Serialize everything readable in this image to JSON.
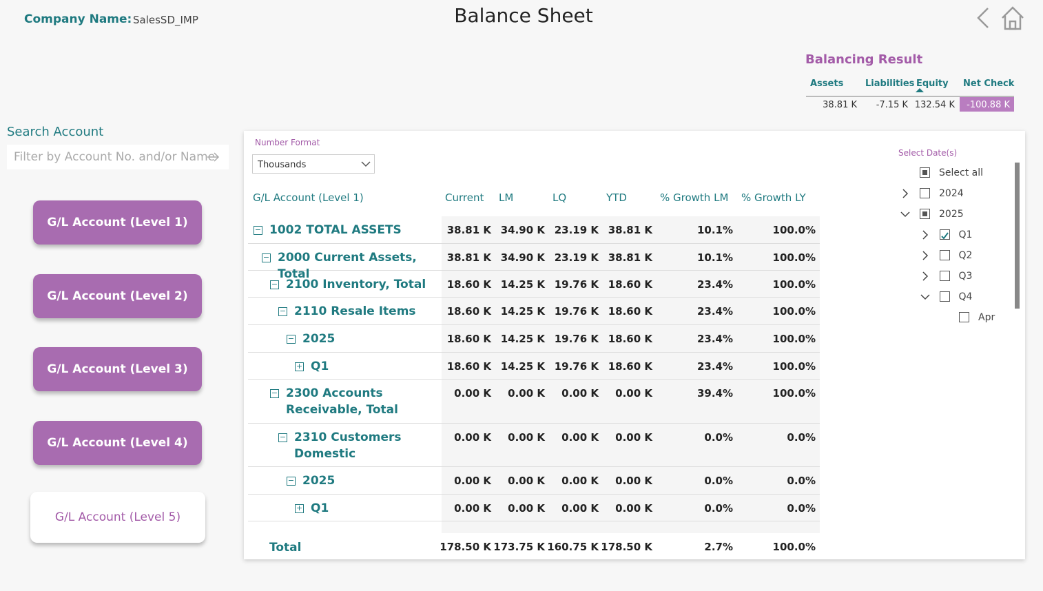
{
  "header": {
    "company_label": "Company Name:",
    "company": "SalesSD_IMP",
    "title": "Balance Sheet"
  },
  "balancing": {
    "title": "Balancing Result",
    "columns": [
      "Assets",
      "Liabilities",
      "Equity",
      "Net Check"
    ],
    "values": [
      "38.81 K",
      "-7.15 K",
      "132.54 K",
      "-100.88 K"
    ]
  },
  "search": {
    "label": "Search Account",
    "placeholder": "Filter by Account No. and/or Name"
  },
  "level_buttons": [
    "G/L Account (Level 1)",
    "G/L Account (Level 2)",
    "G/L Account (Level 3)",
    "G/L Account (Level 4)",
    "G/L Account (Level 5)"
  ],
  "number_format": {
    "label": "Number Format",
    "value": "Thousands"
  },
  "table": {
    "columns": [
      "G/L Account (Level 1)",
      "Current",
      "LM",
      "LQ",
      "YTD",
      "% Growth LM",
      "% Growth LY"
    ],
    "rows": [
      [
        "1002 TOTAL ASSETS",
        "38.81 K",
        "34.90 K",
        "23.19 K",
        "38.81 K",
        "10.1%",
        "100.0%"
      ],
      [
        "2000 Current Assets, Total",
        "38.81 K",
        "34.90 K",
        "23.19 K",
        "38.81 K",
        "10.1%",
        "100.0%"
      ],
      [
        "2100 Inventory, Total",
        "18.60 K",
        "14.25 K",
        "19.76 K",
        "18.60 K",
        "23.4%",
        "100.0%"
      ],
      [
        "2110 Resale Items",
        "18.60 K",
        "14.25 K",
        "19.76 K",
        "18.60 K",
        "23.4%",
        "100.0%"
      ],
      [
        "2025",
        "18.60 K",
        "14.25 K",
        "19.76 K",
        "18.60 K",
        "23.4%",
        "100.0%"
      ],
      [
        "Q1",
        "18.60 K",
        "14.25 K",
        "19.76 K",
        "18.60 K",
        "23.4%",
        "100.0%"
      ],
      [
        "2300 Accounts Receivable, Total",
        "0.00 K",
        "0.00 K",
        "0.00 K",
        "0.00 K",
        "39.4%",
        "100.0%"
      ],
      [
        "2310 Customers Domestic",
        "0.00 K",
        "0.00 K",
        "0.00 K",
        "0.00 K",
        "0.0%",
        "0.0%"
      ],
      [
        "2025",
        "0.00 K",
        "0.00 K",
        "0.00 K",
        "0.00 K",
        "0.0%",
        "0.0%"
      ],
      [
        "Q1",
        "0.00 K",
        "0.00 K",
        "0.00 K",
        "0.00 K",
        "0.0%",
        "0.0%"
      ]
    ],
    "total": [
      "Total",
      "178.50 K",
      "173.75 K",
      "160.75 K",
      "178.50 K",
      "2.7%",
      "100.0%"
    ]
  },
  "date_slicer": {
    "title": "Select Date(s)",
    "items": [
      "Select all",
      "2024",
      "2025",
      "Q1",
      "Q2",
      "Q3",
      "Q4",
      "Apr"
    ]
  }
}
